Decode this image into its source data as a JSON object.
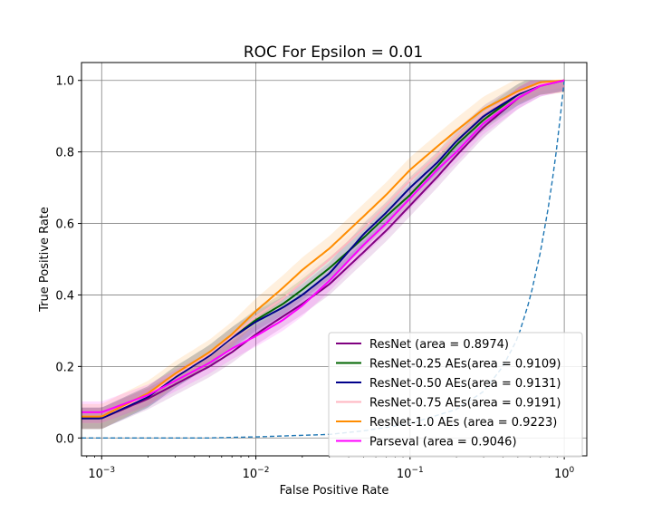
{
  "chart_data": {
    "type": "line",
    "title": "ROC For Epsilon = 0.01",
    "xlabel": "False Positive Rate",
    "ylabel": "True Positive Rate",
    "xscale": "log",
    "xlim": [
      0.00074,
      1.4
    ],
    "ylim": [
      -0.05,
      1.05
    ],
    "grid": true,
    "legend_position": "lower-right",
    "x_ticks": [
      {
        "value": 0.001,
        "base": "10",
        "exp": "−3"
      },
      {
        "value": 0.01,
        "base": "10",
        "exp": "−2"
      },
      {
        "value": 0.1,
        "base": "10",
        "exp": "−1"
      },
      {
        "value": 1,
        "base": "10",
        "exp": "0"
      }
    ],
    "y_ticks": [
      {
        "value": 0.0,
        "label": "0.0"
      },
      {
        "value": 0.2,
        "label": "0.2"
      },
      {
        "value": 0.4,
        "label": "0.4"
      },
      {
        "value": 0.6,
        "label": "0.6"
      },
      {
        "value": 0.8,
        "label": "0.8"
      },
      {
        "value": 1.0,
        "label": "1.0"
      }
    ],
    "series": [
      {
        "name": "ResNet (area = 0.8974)",
        "color": "#800080",
        "band": 0.03,
        "x": [
          0.00074,
          0.001,
          0.002,
          0.003,
          0.005,
          0.007,
          0.01,
          0.015,
          0.02,
          0.03,
          0.05,
          0.07,
          0.1,
          0.15,
          0.2,
          0.3,
          0.5,
          0.7,
          1.0
        ],
        "y": [
          0.055,
          0.055,
          0.11,
          0.15,
          0.2,
          0.24,
          0.29,
          0.34,
          0.375,
          0.43,
          0.52,
          0.58,
          0.65,
          0.73,
          0.79,
          0.87,
          0.95,
          0.985,
          1.0
        ]
      },
      {
        "name": "ResNet-0.25 AEs(area = 0.9109)",
        "color": "#006400",
        "band": 0.03,
        "x": [
          0.00074,
          0.001,
          0.002,
          0.003,
          0.005,
          0.007,
          0.01,
          0.015,
          0.02,
          0.03,
          0.05,
          0.07,
          0.1,
          0.15,
          0.2,
          0.3,
          0.5,
          0.7,
          1.0
        ],
        "y": [
          0.055,
          0.055,
          0.115,
          0.17,
          0.23,
          0.28,
          0.33,
          0.375,
          0.415,
          0.475,
          0.56,
          0.62,
          0.68,
          0.76,
          0.82,
          0.89,
          0.96,
          0.99,
          1.0
        ]
      },
      {
        "name": "ResNet-0.50 AEs(area = 0.9131)",
        "color": "#00008b",
        "band": 0.03,
        "x": [
          0.00074,
          0.001,
          0.002,
          0.003,
          0.005,
          0.007,
          0.01,
          0.015,
          0.02,
          0.03,
          0.05,
          0.07,
          0.1,
          0.15,
          0.2,
          0.3,
          0.5,
          0.7,
          1.0
        ],
        "y": [
          0.055,
          0.055,
          0.115,
          0.17,
          0.23,
          0.28,
          0.325,
          0.365,
          0.4,
          0.46,
          0.57,
          0.63,
          0.7,
          0.77,
          0.83,
          0.9,
          0.96,
          0.99,
          1.0
        ]
      },
      {
        "name": "ResNet-0.75 AEs(area = 0.9191)",
        "color": "#ffb6c1",
        "band": 0.02,
        "x": [
          0.00074,
          0.001,
          0.002,
          0.003,
          0.005,
          0.007,
          0.01,
          0.015,
          0.02,
          0.03,
          0.05,
          0.07,
          0.1,
          0.15,
          0.2,
          0.3,
          0.5,
          0.7,
          1.0
        ],
        "y": [
          0.06,
          0.06,
          0.12,
          0.175,
          0.235,
          0.285,
          0.34,
          0.39,
          0.435,
          0.5,
          0.585,
          0.65,
          0.72,
          0.79,
          0.845,
          0.91,
          0.965,
          0.99,
          1.0
        ]
      },
      {
        "name": "ResNet-1.0 AEs (area = 0.9223)",
        "color": "#ff8c00",
        "band": 0.035,
        "x": [
          0.00074,
          0.001,
          0.002,
          0.003,
          0.005,
          0.007,
          0.01,
          0.015,
          0.02,
          0.03,
          0.05,
          0.07,
          0.1,
          0.15,
          0.2,
          0.3,
          0.5,
          0.7,
          1.0
        ],
        "y": [
          0.06,
          0.06,
          0.125,
          0.18,
          0.24,
          0.29,
          0.355,
          0.42,
          0.47,
          0.53,
          0.62,
          0.68,
          0.75,
          0.815,
          0.86,
          0.92,
          0.97,
          0.995,
          1.0
        ]
      },
      {
        "name": "Parseval (area = 0.9046)",
        "color": "#ff00ff",
        "band": 0.03,
        "x": [
          0.00074,
          0.001,
          0.002,
          0.003,
          0.005,
          0.007,
          0.01,
          0.015,
          0.02,
          0.03,
          0.05,
          0.07,
          0.1,
          0.15,
          0.2,
          0.3,
          0.5,
          0.7,
          1.0
        ],
        "y": [
          0.072,
          0.072,
          0.12,
          0.16,
          0.21,
          0.25,
          0.285,
          0.33,
          0.37,
          0.44,
          0.54,
          0.6,
          0.67,
          0.75,
          0.8,
          0.88,
          0.95,
          0.985,
          1.0
        ]
      }
    ],
    "reference_line": {
      "color": "#1f77b4",
      "style": "dashed",
      "x": [
        0.00074,
        0.001,
        0.005,
        0.01,
        0.03,
        0.05,
        0.1,
        0.2,
        0.3,
        0.4,
        0.5,
        0.6,
        0.7,
        0.8,
        0.9,
        1.0
      ],
      "y": [
        0.0,
        0.0,
        0.0,
        0.003,
        0.01,
        0.02,
        0.04,
        0.08,
        0.13,
        0.2,
        0.28,
        0.39,
        0.52,
        0.66,
        0.82,
        1.0
      ]
    }
  }
}
